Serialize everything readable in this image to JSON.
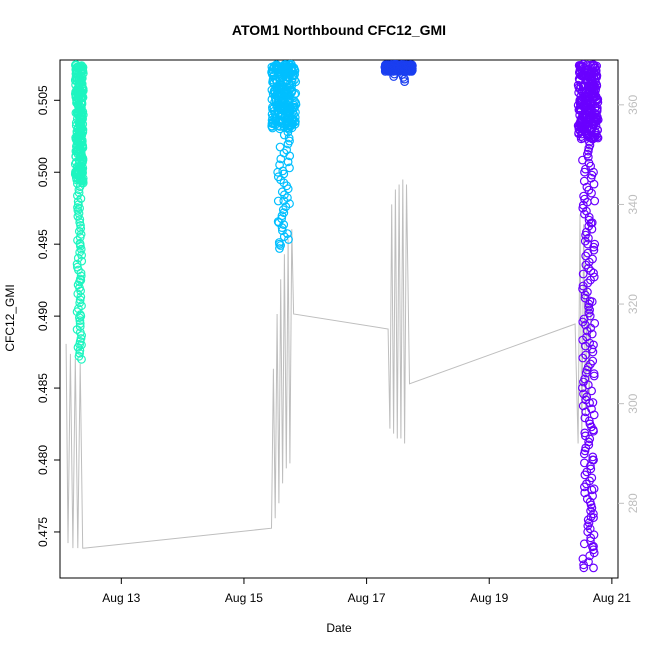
{
  "chart_data": {
    "type": "scatter",
    "title": "ATOM1 Northbound CFC12_GMI",
    "xlabel": "Date",
    "ylabel": "CFC12_GMI",
    "x_ticks": [
      "Aug 13",
      "Aug 15",
      "Aug 17",
      "Aug 19",
      "Aug 21"
    ],
    "x_tick_days": [
      13,
      15,
      17,
      19,
      21
    ],
    "xlim_days": [
      12.0,
      21.1
    ],
    "ylim": [
      0.4718,
      0.5078
    ],
    "y_ticks": [
      0.475,
      0.48,
      0.485,
      0.49,
      0.495,
      0.5,
      0.505
    ],
    "y_tick_labels": [
      "0.475",
      "0.480",
      "0.485",
      "0.490",
      "0.495",
      "0.500",
      "0.505"
    ],
    "y2lim": [
      265,
      369
    ],
    "y2_ticks": [
      280,
      300,
      320,
      340,
      360
    ],
    "grid": false,
    "legend": "none",
    "series": [
      {
        "role": "flight-1",
        "color": "#1ef5c0",
        "x_range": [
          12.25,
          12.38
        ],
        "y_top": 0.5075,
        "dense_bottom": 0.4992,
        "tail_bottom": 0.487,
        "points": [
          {
            "x": 12.3,
            "y": 0.4995
          },
          {
            "x": 12.32,
            "y": 0.4975
          },
          {
            "x": 12.33,
            "y": 0.495
          },
          {
            "x": 12.34,
            "y": 0.4925
          },
          {
            "x": 12.34,
            "y": 0.49
          },
          {
            "x": 12.35,
            "y": 0.488
          },
          {
            "x": 12.35,
            "y": 0.487
          }
        ]
      },
      {
        "role": "flight-2",
        "color": "#00bfff",
        "x_range": [
          15.45,
          15.85
        ],
        "y_top": 0.5075,
        "dense_bottom": 0.503,
        "tail_bottom": 0.4947,
        "points": [
          {
            "x": 15.55,
            "y": 0.5
          },
          {
            "x": 15.56,
            "y": 0.498
          },
          {
            "x": 15.57,
            "y": 0.4965
          },
          {
            "x": 15.58,
            "y": 0.495
          },
          {
            "x": 15.58,
            "y": 0.4947
          }
        ]
      },
      {
        "role": "flight-3",
        "color": "#1a3ef0",
        "x_range": [
          17.3,
          17.75
        ],
        "y_top": 0.5075,
        "dense_bottom": 0.507,
        "tail_bottom": 0.5063,
        "points": [
          {
            "x": 17.6,
            "y": 0.5066
          },
          {
            "x": 17.62,
            "y": 0.5063
          },
          {
            "x": 17.58,
            "y": 0.5068
          }
        ]
      },
      {
        "role": "flight-4",
        "color": "#6a00ff",
        "x_range": [
          20.45,
          20.78
        ],
        "y_top": 0.5075,
        "dense_bottom": 0.5023,
        "tail_bottom": 0.4723,
        "points": [
          {
            "x": 20.7,
            "y": 0.5
          },
          {
            "x": 20.72,
            "y": 0.498
          },
          {
            "x": 20.68,
            "y": 0.4965
          },
          {
            "x": 20.72,
            "y": 0.495
          },
          {
            "x": 20.7,
            "y": 0.493
          },
          {
            "x": 20.68,
            "y": 0.491
          },
          {
            "x": 20.72,
            "y": 0.4895
          },
          {
            "x": 20.7,
            "y": 0.488
          },
          {
            "x": 20.71,
            "y": 0.486
          },
          {
            "x": 20.69,
            "y": 0.484
          },
          {
            "x": 20.7,
            "y": 0.482
          },
          {
            "x": 20.7,
            "y": 0.48
          },
          {
            "x": 20.71,
            "y": 0.478
          },
          {
            "x": 20.7,
            "y": 0.476
          },
          {
            "x": 20.7,
            "y": 0.474
          },
          {
            "x": 20.7,
            "y": 0.4725
          }
        ]
      }
    ],
    "secondary_line": {
      "color": "#bebebe",
      "axis": "right",
      "points": [
        {
          "x": 12.1,
          "y": 312
        },
        {
          "x": 12.13,
          "y": 272
        },
        {
          "x": 12.17,
          "y": 310
        },
        {
          "x": 12.21,
          "y": 271
        },
        {
          "x": 12.25,
          "y": 309
        },
        {
          "x": 12.29,
          "y": 271
        },
        {
          "x": 12.33,
          "y": 308
        },
        {
          "x": 12.37,
          "y": 271
        },
        {
          "x": 12.4,
          "y": 271
        },
        {
          "x": 15.45,
          "y": 275
        },
        {
          "x": 15.48,
          "y": 307
        },
        {
          "x": 15.51,
          "y": 277
        },
        {
          "x": 15.54,
          "y": 318
        },
        {
          "x": 15.57,
          "y": 280
        },
        {
          "x": 15.6,
          "y": 325
        },
        {
          "x": 15.63,
          "y": 284
        },
        {
          "x": 15.66,
          "y": 330
        },
        {
          "x": 15.69,
          "y": 287
        },
        {
          "x": 15.72,
          "y": 333
        },
        {
          "x": 15.75,
          "y": 288
        },
        {
          "x": 15.78,
          "y": 335
        },
        {
          "x": 15.81,
          "y": 318
        },
        {
          "x": 17.35,
          "y": 315
        },
        {
          "x": 17.38,
          "y": 295
        },
        {
          "x": 17.41,
          "y": 340
        },
        {
          "x": 17.44,
          "y": 294
        },
        {
          "x": 17.47,
          "y": 343
        },
        {
          "x": 17.5,
          "y": 293
        },
        {
          "x": 17.53,
          "y": 344
        },
        {
          "x": 17.56,
          "y": 293
        },
        {
          "x": 17.59,
          "y": 345
        },
        {
          "x": 17.62,
          "y": 292
        },
        {
          "x": 17.65,
          "y": 344
        },
        {
          "x": 17.7,
          "y": 304
        },
        {
          "x": 20.4,
          "y": 316
        },
        {
          "x": 20.45,
          "y": 292
        },
        {
          "x": 20.48,
          "y": 338
        },
        {
          "x": 20.51,
          "y": 293
        },
        {
          "x": 20.54,
          "y": 336
        },
        {
          "x": 20.57,
          "y": 298
        },
        {
          "x": 20.6,
          "y": 324
        },
        {
          "x": 20.63,
          "y": 300
        },
        {
          "x": 20.66,
          "y": 320
        }
      ]
    }
  }
}
